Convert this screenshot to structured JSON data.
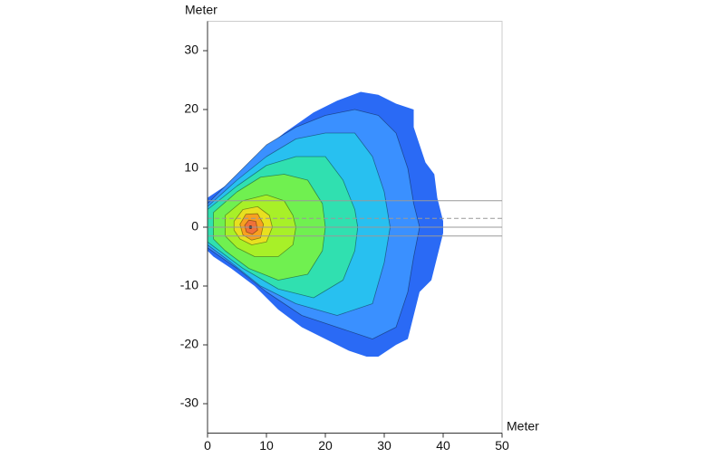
{
  "chart_data": {
    "type": "contour",
    "x_label": "Meter",
    "y_label": "Meter",
    "xlim": [
      0,
      50
    ],
    "ylim": [
      -35,
      35
    ],
    "xticks": [
      0,
      10,
      20,
      30,
      40,
      50
    ],
    "yticks": [
      -30,
      -20,
      -10,
      0,
      10,
      20,
      30
    ],
    "line_color": "#333333",
    "hlines": [
      {
        "value": 4.5,
        "style": "solid"
      },
      {
        "value": 1.5,
        "style": "dashed"
      },
      {
        "value": 0,
        "style": "solid"
      },
      {
        "value": -1.5,
        "style": "solid"
      }
    ],
    "contours": [
      {
        "color": "#2a6af5",
        "x": [
          0,
          3,
          8,
          13,
          18,
          22,
          26,
          29,
          32,
          35,
          35,
          36,
          37,
          38.5,
          39,
          40,
          40,
          39,
          38,
          36,
          35,
          34,
          32,
          29,
          27,
          24,
          20,
          16,
          12,
          8,
          4,
          1,
          0
        ],
        "y": [
          5,
          7,
          12,
          16,
          19.5,
          21.5,
          23,
          22.5,
          21,
          20,
          17,
          14,
          11,
          9,
          5,
          1,
          -1,
          -5,
          -9,
          -11,
          -15,
          -19,
          -20,
          -22,
          -22,
          -21,
          -19,
          -17,
          -14,
          -10,
          -7,
          -5,
          -4
        ]
      },
      {
        "color": "#3a90ff",
        "x": [
          0,
          5,
          10,
          15,
          20,
          25,
          29,
          32,
          34,
          35,
          36,
          35,
          34,
          32,
          28,
          22,
          16,
          10,
          5,
          0
        ],
        "y": [
          4,
          9,
          14,
          17,
          19,
          20,
          19,
          16,
          10,
          4,
          0,
          -5,
          -11,
          -17,
          -19,
          -17,
          -15,
          -11,
          -7,
          -3.5
        ]
      },
      {
        "color": "#28c0f0",
        "x": [
          0,
          5,
          10,
          15,
          20,
          25,
          28,
          30,
          31,
          30,
          28,
          22,
          15,
          9,
          4,
          0
        ],
        "y": [
          3.5,
          8,
          12,
          15,
          16,
          16,
          12,
          6,
          0,
          -6,
          -13,
          -15,
          -13,
          -10,
          -6,
          -3
        ]
      },
      {
        "color": "#30e0b0",
        "x": [
          0,
          5,
          10,
          15,
          20,
          23,
          25,
          25.5,
          25,
          23,
          18,
          12,
          6,
          2,
          0
        ],
        "y": [
          3,
          7,
          10.5,
          12,
          12,
          8,
          3,
          0,
          -4,
          -9,
          -12,
          -10.5,
          -7,
          -4,
          -2.5
        ]
      },
      {
        "color": "#70f050",
        "x": [
          1,
          5,
          9,
          13,
          17,
          19.5,
          20,
          19.5,
          17,
          12,
          7,
          3,
          1
        ],
        "y": [
          2.5,
          6,
          8.5,
          9,
          8,
          4,
          0,
          -4,
          -8,
          -9,
          -7,
          -4,
          -2
        ]
      },
      {
        "color": "#a8f028",
        "x": [
          3,
          6,
          10,
          13,
          14.5,
          15,
          14.5,
          12,
          8,
          5,
          3
        ],
        "y": [
          2,
          4.5,
          5.5,
          4.5,
          2,
          0,
          -3,
          -5,
          -5,
          -3.5,
          -1.5
        ]
      },
      {
        "color": "#e8e020",
        "x": [
          4.5,
          6,
          8.5,
          10.5,
          11,
          10,
          7.5,
          5.5,
          4.5
        ],
        "y": [
          1,
          3,
          3.5,
          2,
          0,
          -2.5,
          -3,
          -2,
          -0.5
        ]
      },
      {
        "color": "#f8a020",
        "x": [
          5.5,
          6.5,
          8.5,
          9.5,
          9,
          7.5,
          6
        ],
        "y": [
          0.5,
          2.2,
          2.3,
          0.5,
          -1.8,
          -2.2,
          -1.3
        ]
      },
      {
        "color": "#f07038",
        "x": [
          6.3,
          7,
          8.2,
          8.5,
          7.6,
          6.6
        ],
        "y": [
          0.3,
          1.2,
          1,
          -0.5,
          -1.2,
          -0.8
        ]
      }
    ],
    "peak": {
      "x": 7.3,
      "y": 0
    }
  }
}
